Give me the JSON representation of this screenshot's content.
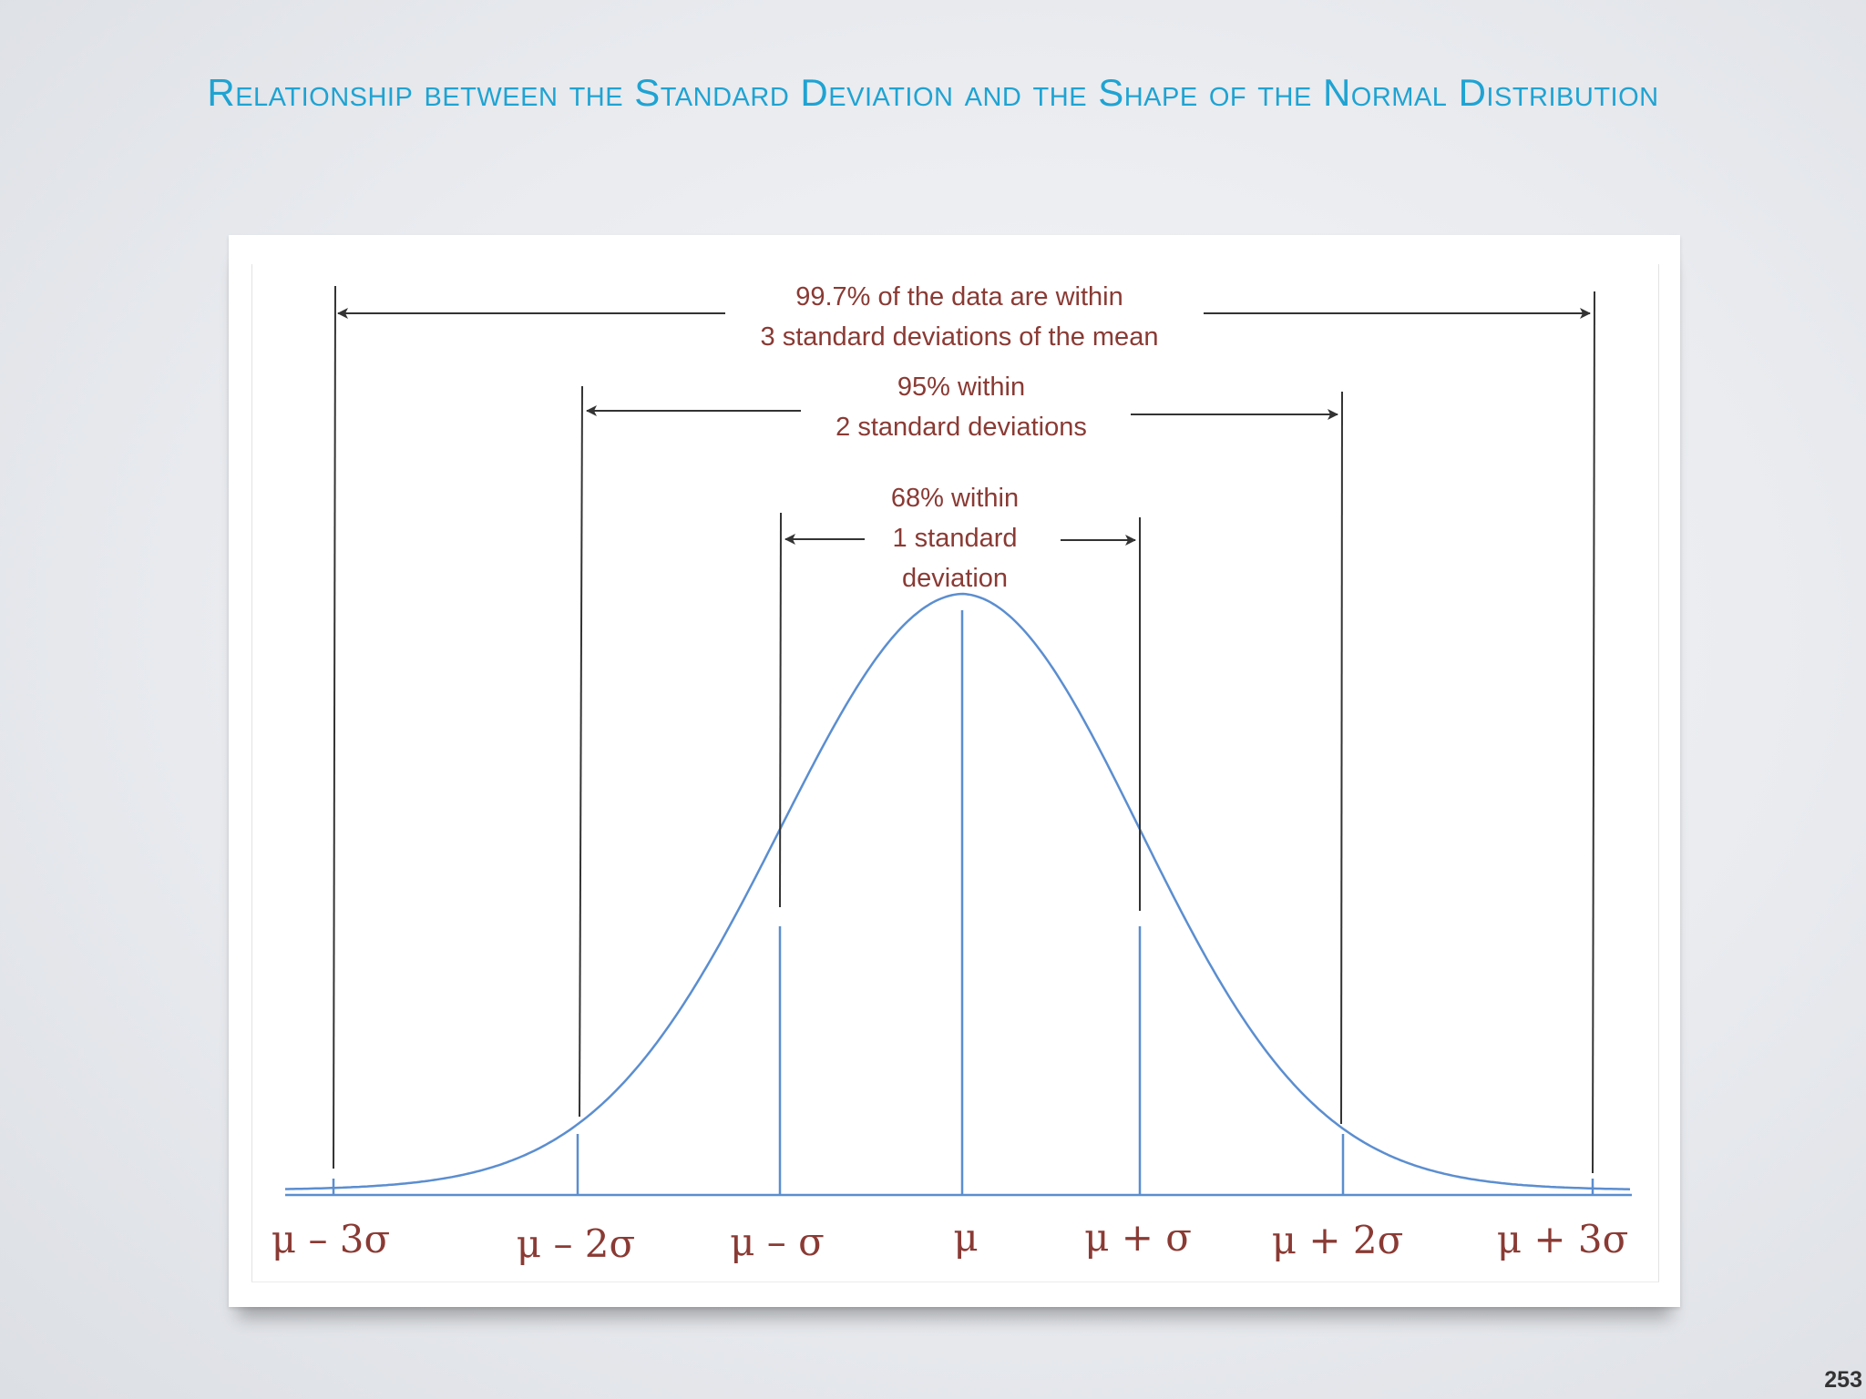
{
  "slide": {
    "title": "Relationship between the Standard Deviation and the Shape of the Normal Distribution",
    "page_number": "253"
  },
  "diagram": {
    "annotations": {
      "three_sd": [
        "99.7% of the data are within",
        "3 standard deviations of the mean"
      ],
      "two_sd": [
        "95% within",
        "2 standard deviations"
      ],
      "one_sd": [
        "68% within",
        "1 standard",
        "deviation"
      ]
    },
    "tick_labels": [
      "μ – 3σ",
      "μ – 2σ",
      "μ – σ",
      "μ",
      "μ + σ",
      "μ + 2σ",
      "μ + 3σ"
    ],
    "colors": {
      "curve": "#5b8ed0",
      "annotation_text": "#8a3a34",
      "arrow_lines": "#333333",
      "title": "#1fa3d2"
    }
  }
}
